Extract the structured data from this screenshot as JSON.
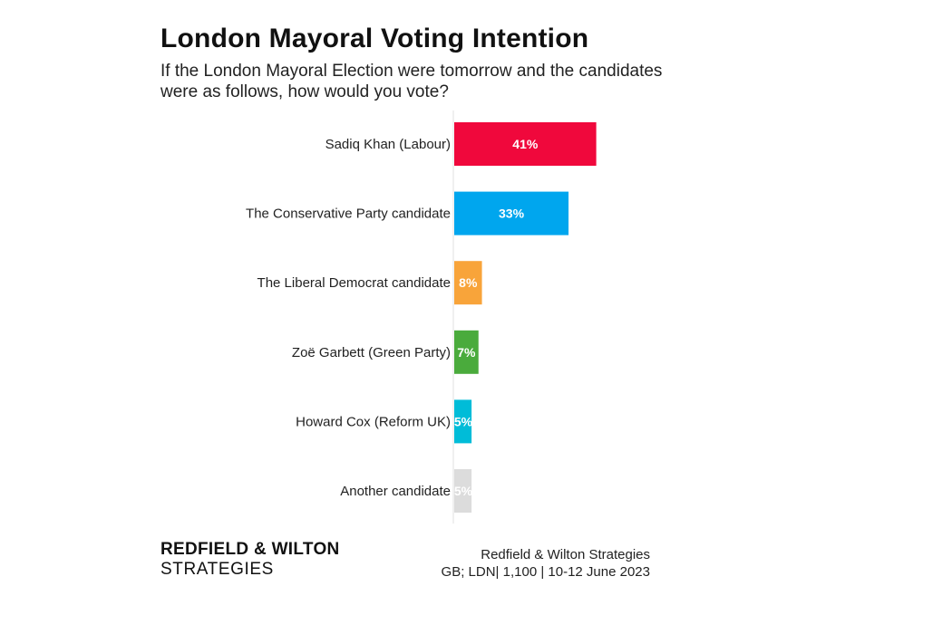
{
  "title": "London Mayoral Voting Intention",
  "subtitle": "If the London Mayoral Election were tomorrow and the candidates were as follows, how would you vote?",
  "chart_data": {
    "type": "bar",
    "orientation": "horizontal",
    "title": "London Mayoral Voting Intention",
    "subtitle": "If the London Mayoral Election were tomorrow and the candidates were as follows, how would you vote?",
    "categories": [
      "Sadiq Khan (Labour)",
      "The Conservative Party candidate",
      "The Liberal Democrat candidate",
      "Zoë Garbett (Green Party)",
      "Howard Cox (Reform UK)",
      "Another candidate"
    ],
    "values": [
      41,
      33,
      8,
      7,
      5,
      5
    ],
    "value_labels": [
      "41%",
      "33%",
      "8%",
      "7%",
      "5%",
      "5%"
    ],
    "colors": [
      "#f0083c",
      "#00a6ee",
      "#f8a43a",
      "#4aab3c",
      "#00bcd8",
      "#dcdcdc"
    ],
    "xlim": [
      0,
      100
    ],
    "grid": false,
    "legend": "none"
  },
  "brand": {
    "line1": "REDFIELD & WILTON",
    "line2": "STRATEGIES"
  },
  "source": {
    "line1": "Redfield & Wilton Strategies",
    "line2": "GB; LDN| 1,100 | 10-12 June 2023"
  }
}
